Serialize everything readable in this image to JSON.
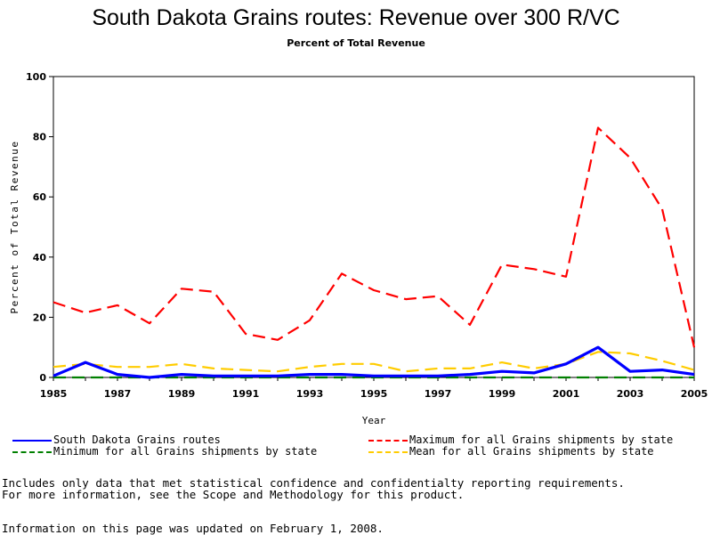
{
  "header": {
    "title": "South Dakota Grains routes: Revenue over 300 R/VC",
    "subtitle": "Percent of Total Revenue"
  },
  "chart_data": {
    "type": "line",
    "title": "South Dakota Grains routes: Revenue over 300 R/VC",
    "subtitle": "Percent of Total Revenue",
    "xlabel": "Year",
    "ylabel": "Percent of Total Revenue",
    "xlim": [
      1985,
      2005
    ],
    "ylim": [
      0,
      100
    ],
    "x_ticks": [
      "1985",
      "1987",
      "1989",
      "1991",
      "1993",
      "1995",
      "1997",
      "1999",
      "2001",
      "2003",
      "2005"
    ],
    "y_ticks": [
      "0",
      "20",
      "40",
      "60",
      "80",
      "100"
    ],
    "grid": false,
    "legend_position": "bottom",
    "x": [
      1985,
      1986,
      1987,
      1988,
      1989,
      1990,
      1991,
      1992,
      1993,
      1994,
      1995,
      1996,
      1997,
      1998,
      1999,
      2000,
      2001,
      2002,
      2003,
      2004,
      2005
    ],
    "series": [
      {
        "name": "South Dakota Grains routes",
        "color": "#0000ff",
        "style": "solid",
        "values": [
          0.5,
          5,
          1,
          0,
          1,
          0.5,
          0.5,
          0.5,
          1,
          1,
          0.5,
          0.5,
          0.5,
          1,
          2,
          1.5,
          4.5,
          10,
          2,
          2.5,
          1
        ]
      },
      {
        "name": "Maximum for all Grains shipments by state",
        "color": "#ff0000",
        "style": "dashed",
        "values": [
          25,
          21.5,
          24,
          18,
          29.5,
          28.5,
          14.5,
          12.5,
          19,
          34.5,
          29,
          26,
          27,
          17.5,
          37.5,
          36,
          33.5,
          83,
          73,
          56,
          10
        ]
      },
      {
        "name": "Minimum for all Grains shipments by state",
        "color": "#008000",
        "style": "dashed",
        "values": [
          0,
          0,
          0,
          0,
          0,
          0,
          0,
          0,
          0,
          0,
          0,
          0,
          0,
          0,
          0,
          0,
          0,
          0,
          0,
          0,
          0
        ]
      },
      {
        "name": "Mean for all Grains shipments by state",
        "color": "#ffcc00",
        "style": "dashed",
        "values": [
          3.5,
          4.5,
          3.5,
          3.5,
          4.5,
          3,
          2.5,
          2,
          3.5,
          4.5,
          4.5,
          2,
          3,
          3,
          5,
          3,
          4.5,
          8.5,
          8,
          5.5,
          2.5
        ]
      }
    ]
  },
  "legend": {
    "items": [
      {
        "label": "South Dakota Grains routes",
        "color": "#0000ff"
      },
      {
        "label": "Maximum for all Grains shipments by state",
        "color": "#ff0000"
      },
      {
        "label": "Minimum for all Grains shipments by state",
        "color": "#008000"
      },
      {
        "label": "Mean for all Grains shipments by state",
        "color": "#ffcc00"
      }
    ]
  },
  "notes": {
    "line1": "Includes only data that met statistical confidence and confidentialty reporting requirements.",
    "line2": "For more information, see the Scope and Methodology for this product.",
    "updated": "Information on this page was updated on February 1, 2008."
  }
}
